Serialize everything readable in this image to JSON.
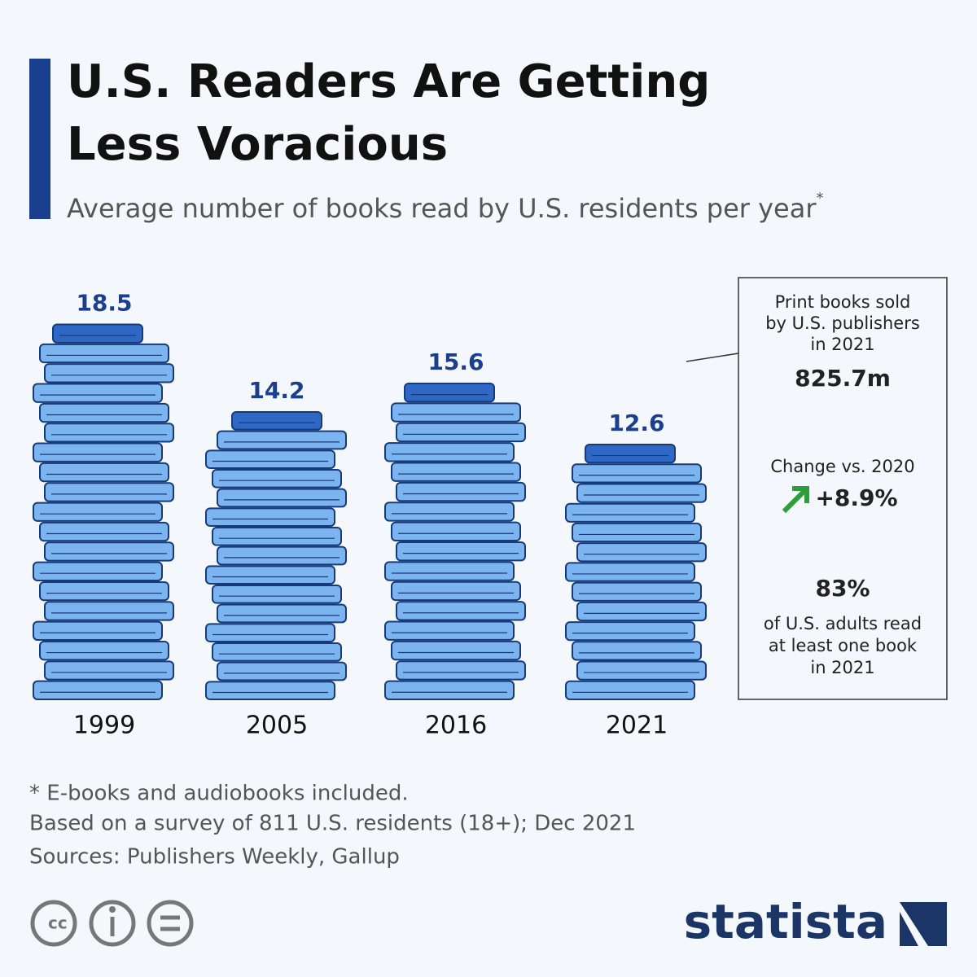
{
  "header": {
    "title_lines": [
      "U.S. Readers Are Getting",
      "Less Voracious"
    ],
    "subtitle": "Average number of books read by U.S. residents per year",
    "subtitle_marker": "*"
  },
  "chart_data": {
    "type": "bar",
    "categories": [
      "1999",
      "2005",
      "2016",
      "2021"
    ],
    "values": [
      18.5,
      14.2,
      15.6,
      12.6
    ],
    "color": "#7cb4f0"
  },
  "side_box": {
    "stat1_lines": [
      "Print books sold",
      "by U.S. publishers",
      "in 2021"
    ],
    "stat1_value": "825.7m",
    "stat2_label": "Change vs. 2020",
    "stat2_value": "+8.9%",
    "stat3_value": "83%",
    "stat3_lines": [
      "of U.S. adults read",
      "at least one book",
      "in 2021"
    ]
  },
  "footer": {
    "notes": [
      "* E-books and audiobooks included.",
      "Based on a survey of 811 U.S. residents (18+); Dec 2021",
      "Sources: Publishers Weekly, Gallup"
    ],
    "brand": "statista"
  }
}
